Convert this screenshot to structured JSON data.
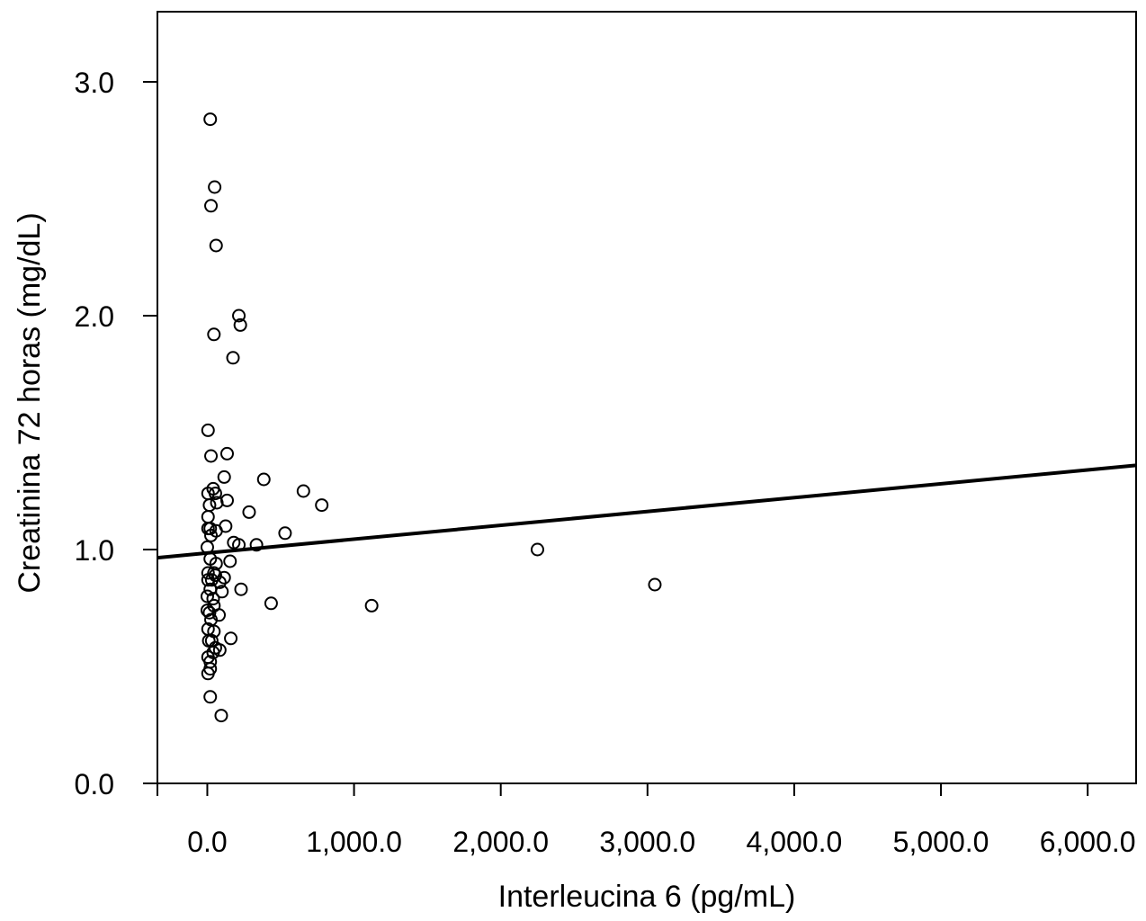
{
  "chart_data": {
    "type": "scatter",
    "xlabel": "Interleucina 6 (pg/mL)",
    "ylabel": "Creatinina 72 horas (mg/dL)",
    "xlim": [
      -340,
      6330
    ],
    "ylim": [
      0.0,
      3.3
    ],
    "xticks": [
      0,
      1000,
      2000,
      3000,
      4000,
      5000,
      6000
    ],
    "xtick_labels": [
      "0.0",
      "1,000.0",
      "2,000.0",
      "3,000.0",
      "4,000.0",
      "5,000.0",
      "6,000.0"
    ],
    "yticks": [
      0.0,
      1.0,
      2.0,
      3.0
    ],
    "ytick_labels": [
      "0.0",
      "1.0",
      "2.0",
      "3.0"
    ],
    "grid": false,
    "marker": "open-circle",
    "colors": {
      "stroke": "#000000",
      "background": "#ffffff"
    },
    "trendline": {
      "x": [
        -340,
        6330
      ],
      "y": [
        0.965,
        1.36
      ]
    },
    "points": [
      {
        "x": 20,
        "y": 2.84
      },
      {
        "x": 50,
        "y": 2.55
      },
      {
        "x": 25,
        "y": 2.47
      },
      {
        "x": 60,
        "y": 2.3
      },
      {
        "x": 215,
        "y": 2.0
      },
      {
        "x": 225,
        "y": 1.96
      },
      {
        "x": 45,
        "y": 1.92
      },
      {
        "x": 175,
        "y": 1.82
      },
      {
        "x": 5,
        "y": 1.51
      },
      {
        "x": 135,
        "y": 1.41
      },
      {
        "x": 25,
        "y": 1.4
      },
      {
        "x": 115,
        "y": 1.31
      },
      {
        "x": 385,
        "y": 1.3
      },
      {
        "x": 655,
        "y": 1.25
      },
      {
        "x": 40,
        "y": 1.26
      },
      {
        "x": 55,
        "y": 1.24
      },
      {
        "x": 5,
        "y": 1.24
      },
      {
        "x": 65,
        "y": 1.2
      },
      {
        "x": 135,
        "y": 1.21
      },
      {
        "x": 15,
        "y": 1.19
      },
      {
        "x": 780,
        "y": 1.19
      },
      {
        "x": 285,
        "y": 1.16
      },
      {
        "x": 5,
        "y": 1.14
      },
      {
        "x": 125,
        "y": 1.1
      },
      {
        "x": 5,
        "y": 1.09
      },
      {
        "x": 20,
        "y": 1.09
      },
      {
        "x": 60,
        "y": 1.08
      },
      {
        "x": 530,
        "y": 1.07
      },
      {
        "x": 25,
        "y": 1.06
      },
      {
        "x": 180,
        "y": 1.03
      },
      {
        "x": 215,
        "y": 1.02
      },
      {
        "x": 335,
        "y": 1.02
      },
      {
        "x": 0,
        "y": 1.01
      },
      {
        "x": 2250,
        "y": 1.0
      },
      {
        "x": 20,
        "y": 0.96
      },
      {
        "x": 155,
        "y": 0.95
      },
      {
        "x": 60,
        "y": 0.94
      },
      {
        "x": 5,
        "y": 0.9
      },
      {
        "x": 45,
        "y": 0.9
      },
      {
        "x": 55,
        "y": 0.89
      },
      {
        "x": 115,
        "y": 0.88
      },
      {
        "x": 5,
        "y": 0.87
      },
      {
        "x": 30,
        "y": 0.87
      },
      {
        "x": 85,
        "y": 0.86
      },
      {
        "x": 3050,
        "y": 0.85
      },
      {
        "x": 20,
        "y": 0.83
      },
      {
        "x": 230,
        "y": 0.83
      },
      {
        "x": 100,
        "y": 0.82
      },
      {
        "x": 0,
        "y": 0.8
      },
      {
        "x": 40,
        "y": 0.79
      },
      {
        "x": 435,
        "y": 0.77
      },
      {
        "x": 45,
        "y": 0.76
      },
      {
        "x": 1120,
        "y": 0.76
      },
      {
        "x": 0,
        "y": 0.74
      },
      {
        "x": 15,
        "y": 0.73
      },
      {
        "x": 80,
        "y": 0.72
      },
      {
        "x": 25,
        "y": 0.7
      },
      {
        "x": 5,
        "y": 0.66
      },
      {
        "x": 45,
        "y": 0.65
      },
      {
        "x": 160,
        "y": 0.62
      },
      {
        "x": 10,
        "y": 0.61
      },
      {
        "x": 30,
        "y": 0.61
      },
      {
        "x": 55,
        "y": 0.58
      },
      {
        "x": 85,
        "y": 0.57
      },
      {
        "x": 40,
        "y": 0.56
      },
      {
        "x": 5,
        "y": 0.54
      },
      {
        "x": 20,
        "y": 0.52
      },
      {
        "x": 20,
        "y": 0.49
      },
      {
        "x": 5,
        "y": 0.47
      },
      {
        "x": 20,
        "y": 0.37
      },
      {
        "x": 95,
        "y": 0.29
      }
    ]
  }
}
